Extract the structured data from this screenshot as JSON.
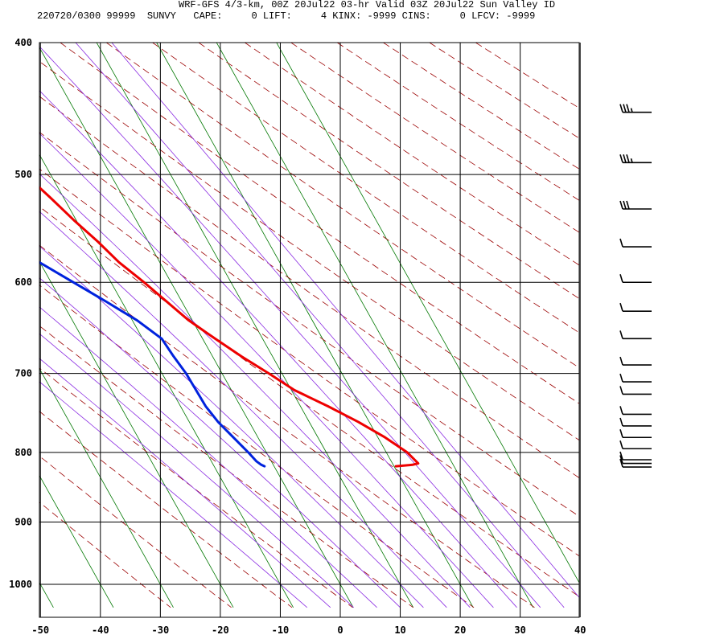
{
  "header": {
    "title": "WRF-GFS 4/3-km, 00Z 20Jul22 03-hr Valid 03Z 20Jul22 Sun Valley ID",
    "info": "220720/0300 99999  SUNVY   CAPE:     0 LIFT:     4 KINX: -9999 CINS:     0 LFCV: -9999"
  },
  "chart_data": {
    "type": "line",
    "subtype": "skew-T log-p sounding",
    "title": "WRF-GFS 4/3-km, 00Z 20Jul22 03-hr Valid 03Z 20Jul22 Sun Valley ID",
    "xlim": [
      -50,
      40
    ],
    "ylim": [
      1040,
      400
    ],
    "y_scale": "log",
    "x_ticks": [
      -50,
      -40,
      -30,
      -20,
      -10,
      0,
      10,
      20,
      30,
      40
    ],
    "x_tick_labels": [
      "-50",
      "-40",
      "-30",
      "-20",
      "-10",
      "0",
      "10",
      "20",
      "30",
      "40"
    ],
    "y_ticks": [
      400,
      500,
      600,
      700,
      800,
      900,
      1000
    ],
    "y_tick_labels": [
      "400",
      "500",
      "600",
      "700",
      "800",
      "900",
      "1000"
    ],
    "grid": true,
    "colors": {
      "temperature": "#ee0000",
      "dewpoint": "#0022dd",
      "dry_adiabats": "#9b0000",
      "moist_adiabats": "#8a2be2",
      "skewed_isotherms": "#007700",
      "grid": "#000000",
      "wind_barbs": "#000000"
    },
    "series": [
      {
        "name": "Temperature",
        "points": [
          [
            20.3,
            819
          ],
          [
            23.2,
            817
          ],
          [
            24.3,
            815
          ],
          [
            23.5,
            800
          ],
          [
            21.2,
            780
          ],
          [
            18.2,
            760
          ],
          [
            14.6,
            740
          ],
          [
            10.5,
            720
          ],
          [
            7.8,
            700
          ],
          [
            4.8,
            680
          ],
          [
            2.1,
            660
          ],
          [
            -0.6,
            640
          ],
          [
            -2.5,
            620
          ],
          [
            -4.5,
            600
          ],
          [
            -6.8,
            580
          ],
          [
            -8.4,
            560
          ],
          [
            -10.4,
            540
          ],
          [
            -12.2,
            520
          ],
          [
            -14.2,
            500
          ],
          [
            -16.2,
            480
          ],
          [
            -18.3,
            460
          ],
          [
            -20.2,
            450
          ]
        ]
      },
      {
        "name": "Dewpoint",
        "points": [
          [
            -1.6,
            819
          ],
          [
            -2.0,
            817
          ],
          [
            -2.5,
            812
          ],
          [
            -3.0,
            800
          ],
          [
            -4.1,
            780
          ],
          [
            -5.2,
            760
          ],
          [
            -5.8,
            740
          ],
          [
            -5.9,
            720
          ],
          [
            -6.0,
            700
          ],
          [
            -6.5,
            680
          ],
          [
            -6.8,
            660
          ],
          [
            -9.2,
            640
          ],
          [
            -12.6,
            620
          ],
          [
            -16.3,
            600
          ],
          [
            -20.1,
            580
          ],
          [
            -24.4,
            560
          ],
          [
            -28.2,
            540
          ],
          [
            -30.7,
            530
          ],
          [
            -33.6,
            510
          ],
          [
            -36.1,
            500
          ],
          [
            -41.5,
            480
          ],
          [
            -46.4,
            460
          ],
          [
            -49.1,
            450
          ]
        ]
      }
    ],
    "wind_barbs": {
      "pressures": [
        450,
        490,
        530,
        565,
        600,
        630,
        660,
        690,
        710,
        725,
        750,
        765,
        780,
        795,
        810,
        815,
        820
      ],
      "flags": [
        0,
        0,
        0,
        0,
        0,
        0,
        0,
        0,
        0,
        0,
        0,
        0,
        0,
        0,
        0,
        0,
        0
      ],
      "full_barbs": [
        3,
        3,
        3,
        1,
        1,
        1,
        1,
        1,
        1,
        1,
        1,
        1,
        1,
        1,
        1,
        1,
        1
      ],
      "half_barbs": [
        1,
        1,
        0,
        0,
        0,
        0,
        0,
        0,
        0,
        0,
        0,
        0,
        0,
        0,
        0,
        0,
        0
      ]
    },
    "background_lines": {
      "skewed_isotherms_c": [
        -120,
        -110,
        -100,
        -90,
        -80,
        -70,
        -60,
        -50,
        -40,
        -30,
        -20,
        -10,
        0,
        10,
        20,
        30,
        40
      ],
      "dry_adiabats_theta_k": [
        240,
        250,
        260,
        270,
        280,
        290,
        300,
        310,
        320,
        330,
        340,
        350,
        360,
        370,
        380,
        390,
        400,
        410,
        420,
        430,
        440,
        450
      ],
      "moist_adiabats_theta_c": [
        -10,
        -6,
        -2,
        2,
        6,
        10,
        14,
        18,
        22,
        26,
        30,
        34,
        38
      ]
    }
  }
}
